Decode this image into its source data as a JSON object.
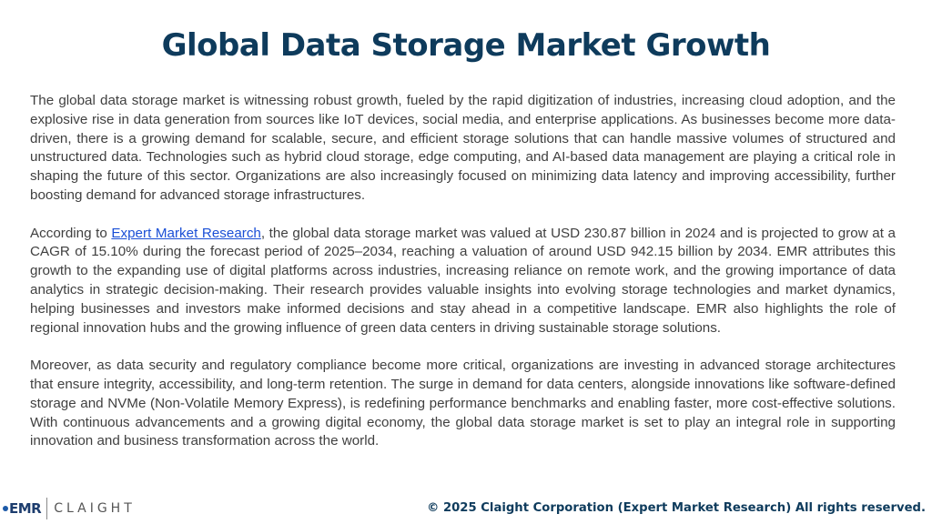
{
  "title": "Global Data Storage Market Growth",
  "paragraphs": {
    "p1": "The global data storage market is witnessing robust growth, fueled by the rapid digitization of industries, increasing cloud adoption, and the explosive rise in data generation from sources like IoT devices, social media, and enterprise applications. As businesses become more data-driven, there is a growing demand for scalable, secure, and efficient storage solutions that can handle massive volumes of structured and unstructured data. Technologies such as hybrid cloud storage, edge computing, and AI-based data management are playing a critical role in shaping the future of this sector. Organizations are also increasingly focused on minimizing data latency and improving accessibility, further boosting demand for advanced storage infrastructures.",
    "p2_before_link": "According to ",
    "p2_link": "Expert Market Research",
    "p2_after_link": ", the global data storage market was valued at USD 230.87 billion in 2024 and is projected to grow at a CAGR of 15.10% during the forecast period of 2025–2034, reaching a valuation of around USD 942.15 billion by 2034. EMR attributes this growth to the expanding use of digital platforms across industries, increasing reliance on remote work, and the growing importance of data analytics in strategic decision-making. Their research provides valuable insights into evolving storage technologies and market dynamics, helping businesses and investors make informed decisions and stay ahead in a competitive landscape. EMR also highlights the role of regional innovation hubs and the growing influence of green data centers in driving sustainable storage solutions.",
    "p3": "Moreover, as data security and regulatory compliance become more critical, organizations are investing in advanced storage architectures that ensure integrity, accessibility, and long-term retention. The surge in demand for data centers, alongside innovations like software-defined storage and NVMe (Non-Volatile Memory Express), is redefining performance benchmarks and enabling faster, more cost-effective solutions. With continuous advancements and a growing digital economy, the global data storage market is set to play an integral role in supporting innovation and business transformation across the world."
  },
  "footer": {
    "logo_left": "EMR",
    "logo_right": "CLAIGHT",
    "copyright": "© 2025 Claight Corporation (Expert Market Research) All rights reserved."
  },
  "colors": {
    "title": "#0e3b5c",
    "body_text": "#404040",
    "link": "#1a4fd6",
    "logo_emr": "#1d3d6e",
    "copyright": "#0e3b5c"
  }
}
